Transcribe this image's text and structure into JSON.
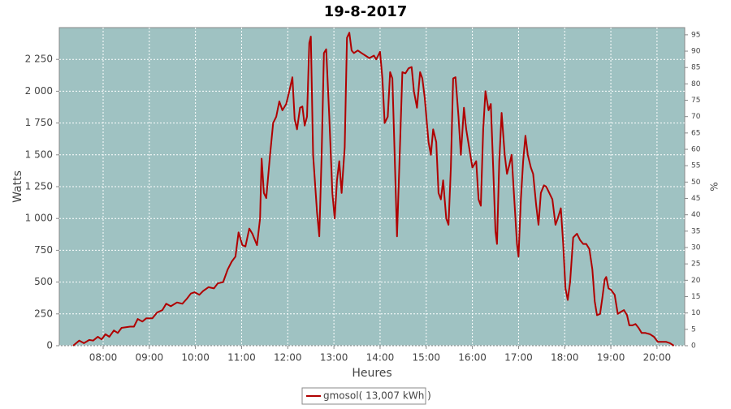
{
  "chart_data": {
    "type": "line",
    "title": "19-8-2017",
    "x_label": "Heures",
    "y_label": "Watts",
    "y2_label": "%",
    "x": [
      441,
      449,
      455,
      462,
      467,
      473,
      478,
      483,
      488,
      494,
      499,
      504,
      515,
      520,
      525,
      531,
      536,
      544,
      550,
      557,
      562,
      568,
      576,
      583,
      589,
      594,
      599,
      605,
      610,
      617,
      624,
      629,
      636,
      642,
      647,
      652,
      656,
      661,
      665,
      670,
      674,
      680,
      684,
      686,
      689,
      692,
      697,
      701,
      705,
      709,
      713,
      718,
      722,
      726,
      729,
      732,
      736,
      739,
      742,
      745,
      748,
      750,
      753,
      758,
      761,
      764,
      767,
      770,
      774,
      778,
      781,
      784,
      787,
      790,
      794,
      797,
      800,
      803,
      806,
      811,
      816,
      821,
      826,
      832,
      835,
      840,
      843,
      846,
      850,
      853,
      856,
      859,
      862,
      865,
      869,
      873,
      877,
      881,
      884,
      888,
      892,
      895,
      898,
      903,
      906,
      909,
      913,
      916,
      919,
      922,
      926,
      929,
      932,
      935,
      938,
      942,
      945,
      949,
      952,
      956,
      960,
      965,
      968,
      971,
      974,
      977,
      981,
      984,
      987,
      990,
      992,
      995,
      998,
      1002,
      1005,
      1008,
      1011,
      1014,
      1018,
      1020,
      1023,
      1026,
      1029,
      1032,
      1036,
      1039,
      1043,
      1046,
      1049,
      1053,
      1056,
      1060,
      1064,
      1068,
      1071,
      1075,
      1078,
      1081,
      1084,
      1087,
      1091,
      1096,
      1100,
      1104,
      1108,
      1112,
      1116,
      1119,
      1122,
      1126,
      1129,
      1132,
      1134,
      1137,
      1140,
      1145,
      1149,
      1154,
      1157,
      1161,
      1164,
      1168,
      1172,
      1176,
      1180,
      1185,
      1191,
      1196,
      1201,
      1206,
      1212,
      1217,
      1222
    ],
    "series": [
      {
        "name": "gmosol( 13,007 kWh )",
        "color": "#b00000",
        "values": [
          0,
          40,
          20,
          45,
          40,
          70,
          50,
          90,
          70,
          120,
          100,
          140,
          150,
          150,
          210,
          190,
          215,
          215,
          260,
          280,
          330,
          310,
          340,
          330,
          370,
          410,
          420,
          400,
          430,
          460,
          450,
          490,
          500,
          600,
          660,
          700,
          890,
          790,
          780,
          920,
          880,
          790,
          1000,
          1470,
          1200,
          1160,
          1500,
          1750,
          1800,
          1920,
          1850,
          1900,
          2000,
          2110,
          1780,
          1700,
          1870,
          1880,
          1730,
          1800,
          2380,
          2430,
          1500,
          1050,
          860,
          1500,
          2300,
          2330,
          1800,
          1200,
          1000,
          1300,
          1450,
          1200,
          1560,
          2420,
          2460,
          2320,
          2300,
          2320,
          2300,
          2280,
          2260,
          2280,
          2250,
          2310,
          2100,
          1750,
          1800,
          2150,
          2100,
          1500,
          860,
          1400,
          2150,
          2140,
          2180,
          2190,
          2000,
          1870,
          2150,
          2100,
          1950,
          1600,
          1500,
          1700,
          1600,
          1200,
          1150,
          1300,
          1000,
          950,
          1400,
          2100,
          2110,
          1800,
          1500,
          1870,
          1700,
          1550,
          1400,
          1450,
          1150,
          1100,
          1700,
          2000,
          1850,
          1900,
          1400,
          900,
          800,
          1450,
          1830,
          1500,
          1350,
          1420,
          1500,
          1200,
          800,
          700,
          1150,
          1450,
          1650,
          1500,
          1400,
          1350,
          1100,
          950,
          1200,
          1260,
          1250,
          1200,
          1150,
          950,
          1000,
          1080,
          800,
          450,
          360,
          500,
          850,
          880,
          830,
          800,
          800,
          760,
          600,
          350,
          240,
          250,
          380,
          520,
          540,
          450,
          440,
          400,
          250,
          270,
          280,
          240,
          160,
          160,
          170,
          140,
          100,
          100,
          90,
          70,
          30,
          30,
          30,
          20,
          0
        ]
      }
    ],
    "xlim": [
      423,
      1236
    ],
    "xticks": [
      {
        "value": 480,
        "label": "08:00"
      },
      {
        "value": 540,
        "label": "09:00"
      },
      {
        "value": 600,
        "label": "10:00"
      },
      {
        "value": 660,
        "label": "11:00"
      },
      {
        "value": 720,
        "label": "12:00"
      },
      {
        "value": 780,
        "label": "13:00"
      },
      {
        "value": 840,
        "label": "14:00"
      },
      {
        "value": 900,
        "label": "15:00"
      },
      {
        "value": 960,
        "label": "16:00"
      },
      {
        "value": 1020,
        "label": "17:00"
      },
      {
        "value": 1080,
        "label": "18:00"
      },
      {
        "value": 1140,
        "label": "19:00"
      },
      {
        "value": 1200,
        "label": "20:00"
      }
    ],
    "ylim": [
      0,
      2500
    ],
    "yticks": [
      0,
      250,
      500,
      750,
      {
        "value": 1000,
        "label": "1 000"
      },
      {
        "value": 1250,
        "label": "1 250"
      },
      {
        "value": 1500,
        "label": "1 500"
      },
      {
        "value": 1750,
        "label": "1 750"
      },
      {
        "value": 2000,
        "label": "2 000"
      },
      {
        "value": 2250,
        "label": "2 250"
      }
    ],
    "y2lim": [
      0,
      97.2
    ],
    "y2ticks": [
      0,
      5,
      10,
      15,
      20,
      25,
      30,
      35,
      40,
      45,
      50,
      55,
      60,
      65,
      70,
      75,
      80,
      85,
      90,
      95
    ],
    "grid": true,
    "legend": "bottom"
  }
}
